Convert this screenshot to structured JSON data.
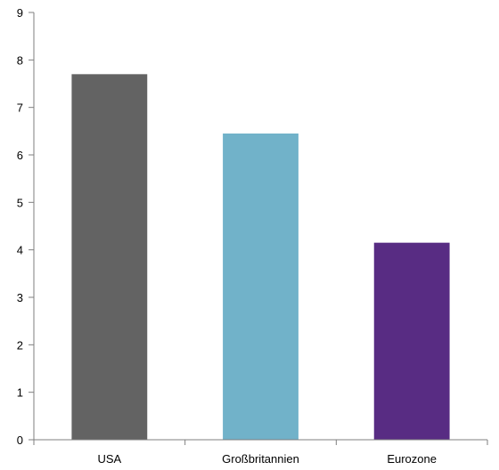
{
  "chart_data": {
    "type": "bar",
    "categories": [
      "USA",
      "Großbritannien",
      "Eurozone"
    ],
    "values": [
      7.7,
      6.45,
      4.15
    ],
    "colors": [
      "#636363",
      "#71b2c9",
      "#582c83"
    ],
    "ylim": [
      0,
      9
    ],
    "yticks": [
      0,
      1,
      2,
      3,
      4,
      5,
      6,
      7,
      8,
      9
    ],
    "grid": false,
    "legend": "none"
  }
}
